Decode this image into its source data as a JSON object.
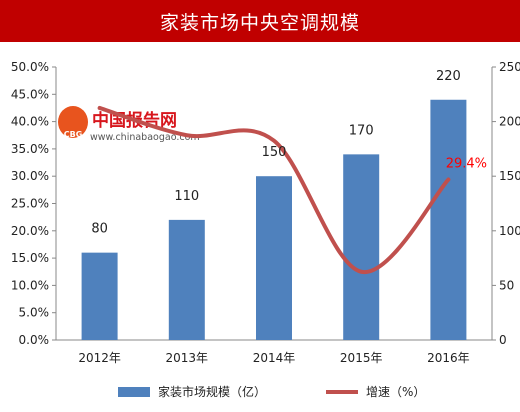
{
  "watermark": {
    "brand_text": "中国报告网",
    "badge_text": "CBG",
    "url_text": "www.chinabaogao.com"
  },
  "chart_data": {
    "type": "bar",
    "title": "家装市场中央空调规模",
    "categories": [
      "2012年",
      "2013年",
      "2014年",
      "2015年",
      "2016年"
    ],
    "series": [
      {
        "name": "家装市场规模（亿）",
        "type": "bar",
        "axis": "right",
        "color": "#4f81bd",
        "values": [
          80,
          110,
          150,
          170,
          220
        ],
        "data_labels": [
          "80",
          "110",
          "150",
          "170",
          "220"
        ]
      },
      {
        "name": "增速（%）",
        "type": "line",
        "axis": "left",
        "color": "#c0504d",
        "values": [
          42.5,
          37.5,
          36.5,
          12.5,
          29.4
        ],
        "data_labels": [
          "",
          "",
          "",
          "",
          "29.4%"
        ],
        "label_color": "#ff0000"
      }
    ],
    "y_left": {
      "ylim": [
        0,
        50
      ],
      "ticks": [
        "0.0%",
        "5.0%",
        "10.0%",
        "15.0%",
        "20.0%",
        "25.0%",
        "30.0%",
        "35.0%",
        "40.0%",
        "45.0%",
        "50.0%"
      ]
    },
    "y_right": {
      "ylim": [
        0,
        250
      ],
      "ticks": [
        "0",
        "50",
        "100",
        "150",
        "200",
        "250"
      ]
    },
    "grid": false,
    "legend_position": "bottom"
  }
}
